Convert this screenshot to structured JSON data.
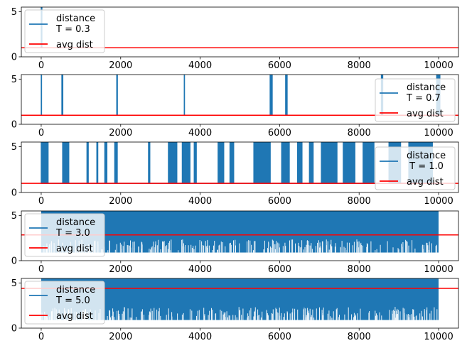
{
  "chart_data": [
    {
      "type": "line",
      "xlim": [
        -500,
        10500
      ],
      "ylim": [
        0,
        5.5
      ],
      "xticks": [
        0,
        2000,
        4000,
        6000,
        8000,
        10000
      ],
      "yticks": [
        0,
        5
      ],
      "legend_placement": "upper left",
      "series": [
        {
          "name": "distance\nT = 0.3",
          "color": "#1f77b4",
          "n_points": 10000,
          "baseline": 1.0,
          "spikes": [
            [
              0,
              25
            ]
          ]
        },
        {
          "name": "avg dist",
          "color": "#ff0000",
          "value": 1.0
        }
      ]
    },
    {
      "type": "line",
      "xlim": [
        -500,
        10500
      ],
      "ylim": [
        0,
        5.5
      ],
      "xticks": [
        0,
        2000,
        4000,
        6000,
        8000,
        10000
      ],
      "yticks": [
        0,
        5
      ],
      "legend_placement": "lower right",
      "series": [
        {
          "name": "distance\nT = 0.7",
          "color": "#1f77b4",
          "n_points": 10000,
          "baseline": 1.0,
          "spikes": [
            [
              0,
              15
            ],
            [
              520,
              30
            ],
            [
              1900,
              25
            ],
            [
              3600,
              10
            ],
            [
              5760,
              60
            ],
            [
              6150,
              45
            ],
            [
              8560,
              40
            ],
            [
              9950,
              90
            ]
          ]
        },
        {
          "name": "avg dist",
          "color": "#ff0000",
          "value": 1.0
        }
      ]
    },
    {
      "type": "line",
      "xlim": [
        -500,
        10500
      ],
      "ylim": [
        0,
        5.5
      ],
      "xticks": [
        0,
        2000,
        4000,
        6000,
        8000,
        10000
      ],
      "yticks": [
        0,
        5
      ],
      "legend_placement": "lower right",
      "series": [
        {
          "name": "distance\n T = 1.0",
          "color": "#1f77b4",
          "n_points": 10000,
          "baseline": 1.0,
          "spikes": [
            [
              0,
              180
            ],
            [
              540,
              160
            ],
            [
              1150,
              40
            ],
            [
              1400,
              30
            ],
            [
              1600,
              60
            ],
            [
              1850,
              70
            ],
            [
              2700,
              40
            ],
            [
              3200,
              220
            ],
            [
              3550,
              200
            ],
            [
              3850,
              60
            ],
            [
              4450,
              150
            ],
            [
              4750,
              100
            ],
            [
              5350,
              420
            ],
            [
              6050,
              200
            ],
            [
              6450,
              120
            ],
            [
              6750,
              100
            ],
            [
              7050,
              400
            ],
            [
              7600,
              300
            ],
            [
              8100,
              280
            ],
            [
              8750,
              300
            ],
            [
              9250,
              600
            ]
          ]
        },
        {
          "name": "avg dist",
          "color": "#ff0000",
          "value": 1.0
        }
      ]
    },
    {
      "type": "line",
      "xlim": [
        -500,
        10500
      ],
      "ylim": [
        0,
        5.5
      ],
      "xticks": [
        0,
        2000,
        4000,
        6000,
        8000,
        10000
      ],
      "yticks": [
        0,
        5
      ],
      "legend_placement": "upper left",
      "series": [
        {
          "name": "distance\nT = 3.0",
          "color": "#1f77b4",
          "n_points": 10000,
          "dense": true,
          "min": 0.9,
          "max": 5.5
        },
        {
          "name": "avg dist",
          "color": "#ff0000",
          "value": 2.85
        }
      ]
    },
    {
      "type": "line",
      "xlim": [
        -500,
        10500
      ],
      "ylim": [
        0,
        5.5
      ],
      "xticks": [
        0,
        2000,
        4000,
        6000,
        8000,
        10000
      ],
      "yticks": [
        0,
        5
      ],
      "legend_placement": "upper left",
      "series": [
        {
          "name": "distance\nT = 5.0",
          "color": "#1f77b4",
          "n_points": 10000,
          "dense": true,
          "min": 0.9,
          "max": 5.5
        },
        {
          "name": "avg dist",
          "color": "#ff0000",
          "value": 4.4
        }
      ]
    }
  ]
}
